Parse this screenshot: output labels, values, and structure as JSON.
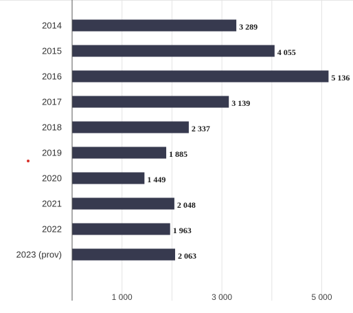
{
  "chart_data": {
    "type": "bar",
    "orientation": "horizontal",
    "categories": [
      "2014",
      "2015",
      "2016",
      "2017",
      "2018",
      "2019",
      "2020",
      "2021",
      "2022",
      "2023 (prov)"
    ],
    "values": [
      3289,
      4055,
      5136,
      3139,
      2337,
      1885,
      1449,
      2048,
      1963,
      2063
    ],
    "value_labels": [
      "3 289",
      "4 055",
      "5 136",
      "3 139",
      "2 337",
      "1 885",
      "1 449",
      "2 048",
      "1 963",
      "2 063"
    ],
    "xlim": [
      0,
      5500
    ],
    "grid_values": [
      1000,
      2000,
      3000,
      4000,
      5000
    ],
    "tick_values": [
      1000,
      3000,
      5000
    ],
    "tick_labels": [
      "1 000",
      "3 000",
      "5 000"
    ],
    "grid": true,
    "bar_color": "#373a4f",
    "title": "",
    "xlabel": "",
    "ylabel": ""
  },
  "colors": {
    "bar": "#373a4f",
    "marker": "#d8322a"
  }
}
